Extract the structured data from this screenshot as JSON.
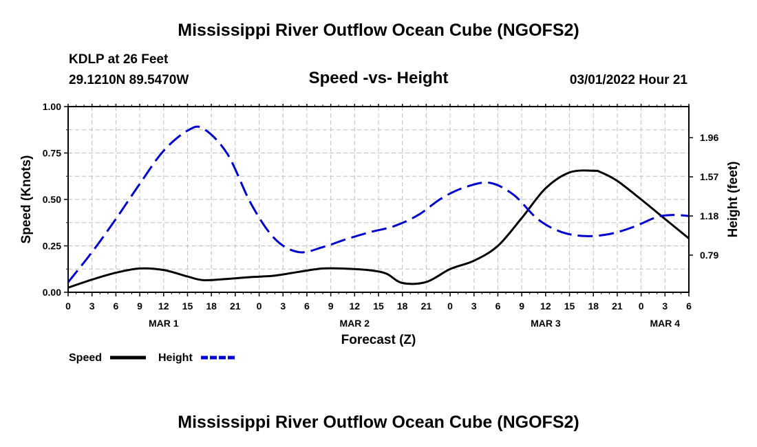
{
  "page": {
    "title_top": "Mississippi River Outflow Ocean Cube (NGOFS2)",
    "title_bottom": "Mississippi River Outflow Ocean Cube (NGOFS2)",
    "station": "KDLP at 26 Feet",
    "coords": "29.1210N  89.5470W",
    "timestamp": "03/01/2022 Hour 21"
  },
  "chart_data": {
    "type": "line",
    "title": "Speed -vs- Height",
    "xlabel": "Forecast (Z)",
    "ylabel": "Speed (Knots)",
    "ylabel_right": "Height (feet)",
    "x_unit": "forecast hour from MAR 1 00Z",
    "xlim": [
      0,
      78
    ],
    "x_ticks": [
      0,
      3,
      6,
      9,
      12,
      15,
      18,
      21,
      24,
      27,
      30,
      33,
      36,
      39,
      42,
      45,
      48,
      51,
      54,
      57,
      60,
      63,
      66,
      69,
      72,
      75,
      78
    ],
    "x_tick_labels": [
      "0",
      "3",
      "6",
      "9",
      "12",
      "15",
      "18",
      "21",
      "0",
      "3",
      "6",
      "9",
      "12",
      "15",
      "18",
      "21",
      "0",
      "3",
      "6",
      "9",
      "12",
      "15",
      "18",
      "21",
      "0",
      "3",
      "6"
    ],
    "day_labels": [
      {
        "x": 12,
        "label": "MAR 1"
      },
      {
        "x": 36,
        "label": "MAR 2"
      },
      {
        "x": 60,
        "label": "MAR 3"
      },
      {
        "x": 75,
        "label": "MAR 4"
      }
    ],
    "ylim": [
      0,
      1
    ],
    "y_ticks": [
      0,
      0.25,
      0.5,
      0.75,
      1.0
    ],
    "y_tick_labels": [
      "0.00",
      "0.25",
      "0.50",
      "0.75",
      "1.00"
    ],
    "ylim_right": [
      0.42,
      2.27
    ],
    "y_ticks_right": [
      0.79,
      1.18,
      1.57,
      1.96
    ],
    "y_tick_labels_right": [
      "0.79",
      "1.18",
      "1.57",
      "1.96"
    ],
    "series": [
      {
        "name": "Speed",
        "axis": "left",
        "color": "#000000",
        "dash": "solid",
        "x": [
          0,
          3,
          6,
          9,
          12,
          15,
          17,
          20,
          23,
          26,
          29,
          32,
          35,
          38,
          40,
          42,
          45,
          48,
          51,
          54,
          57,
          60,
          63,
          66,
          67,
          69,
          72,
          75,
          78
        ],
        "y": [
          0.025,
          0.068,
          0.105,
          0.128,
          0.12,
          0.085,
          0.065,
          0.072,
          0.082,
          0.09,
          0.11,
          0.128,
          0.127,
          0.118,
          0.1,
          0.05,
          0.055,
          0.125,
          0.17,
          0.25,
          0.4,
          0.56,
          0.645,
          0.655,
          0.645,
          0.6,
          0.5,
          0.395,
          0.29
        ]
      },
      {
        "name": "Height",
        "axis": "right",
        "color": "#0000cc",
        "dash": "dashed",
        "x": [
          0,
          3,
          6,
          9,
          12,
          15,
          17,
          20,
          23,
          26,
          29,
          32,
          35,
          38,
          41,
          44,
          47,
          50,
          53,
          56,
          59,
          62,
          65,
          68,
          71,
          74,
          76,
          78
        ],
        "y": [
          0.52,
          0.82,
          1.15,
          1.5,
          1.83,
          2.03,
          2.05,
          1.8,
          1.3,
          0.95,
          0.82,
          0.87,
          0.95,
          1.02,
          1.08,
          1.19,
          1.36,
          1.47,
          1.51,
          1.39,
          1.15,
          1.02,
          0.98,
          1.0,
          1.07,
          1.17,
          1.19,
          1.18
        ]
      }
    ],
    "legend": [
      {
        "label": "Speed",
        "color": "#000000",
        "dash": "solid"
      },
      {
        "label": "Height",
        "color": "#0000cc",
        "dash": "dashed"
      }
    ]
  }
}
